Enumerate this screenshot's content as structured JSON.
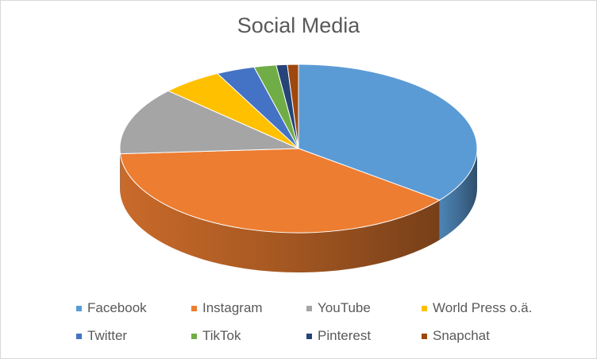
{
  "chart_data": {
    "type": "pie",
    "title": "Social Media",
    "categories": [
      "Facebook",
      "Instagram",
      "YouTube",
      "World Press o.ä.",
      "Twitter",
      "TikTok",
      "Pinterest",
      "Snapchat"
    ],
    "values": [
      35.5,
      38.5,
      13.0,
      5.5,
      3.5,
      2.0,
      1.0,
      1.0
    ],
    "colors": [
      "#5b9bd5",
      "#ed7d31",
      "#a5a5a5",
      "#ffc000",
      "#4472c4",
      "#70ad47",
      "#264478",
      "#9e480e"
    ],
    "legend_position": "bottom",
    "style": "3d"
  }
}
